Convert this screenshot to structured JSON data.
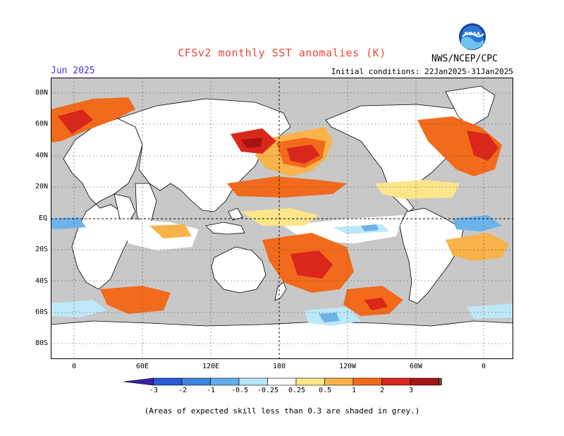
{
  "header": {
    "title": "CFSv2 monthly SST anomalies (K)",
    "valid_month": "Jun 2025",
    "initial_conditions": "Initial conditions: 22Jan2025-31Jan2025",
    "agency": "NWS/NCEP/CPC",
    "logo_text": "NOAA"
  },
  "map": {
    "lat_labels": [
      "80N",
      "60N",
      "40N",
      "20N",
      "EQ",
      "20S",
      "40S",
      "60S",
      "80S"
    ],
    "lon_labels": [
      "0",
      "60E",
      "120E",
      "180",
      "120W",
      "60W",
      "0"
    ],
    "colors": {
      "mask_grey": "#c8c8c8",
      "neutral": "#ffffff",
      "warm_light": "#fde68a",
      "warm_mid": "#f8b34a",
      "warm_orange": "#f26a1b",
      "warm_red": "#d9271c",
      "warm_dark": "#a51412",
      "cool_light": "#bde8f7",
      "cool_mid": "#6cb3ea",
      "cool_blue": "#3b7dd8"
    }
  },
  "legend": {
    "tick_labels": [
      "-3",
      "-2",
      "-1",
      "-0.5",
      "-0.25",
      "0.25",
      "0.5",
      "1",
      "2",
      "3"
    ],
    "colors": [
      "#3a1fa8",
      "#2a5bd6",
      "#3d84e0",
      "#63aeea",
      "#b5e6f6",
      "#ffffff",
      "#fde68a",
      "#f8b34a",
      "#f26a1b",
      "#d9271c",
      "#a51412",
      "#6e4a3a"
    ]
  },
  "footnote": "(Areas of expected skill less than 0.3 are shaded in grey.)"
}
